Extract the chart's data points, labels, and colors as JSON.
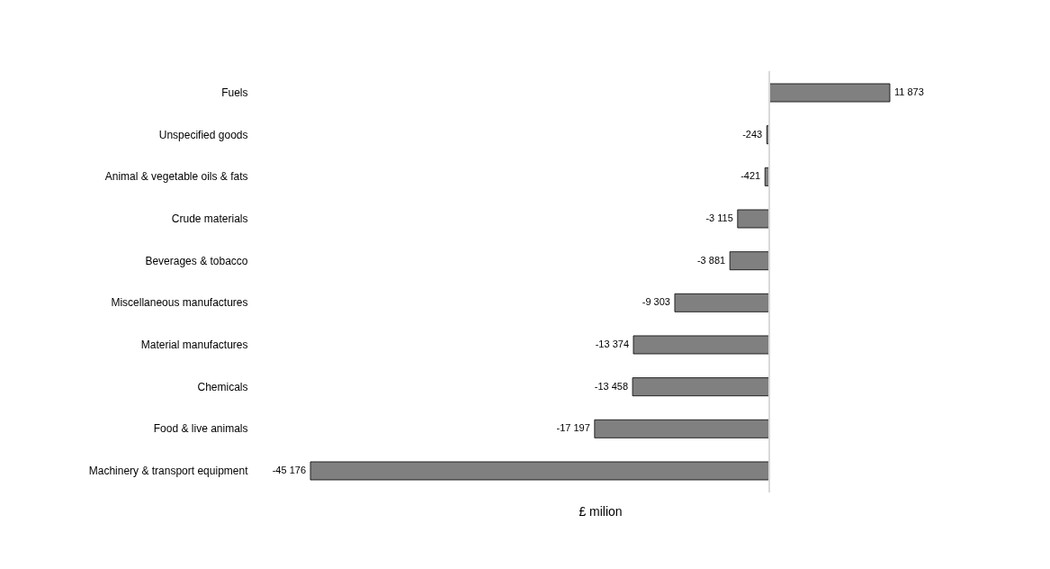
{
  "chart_data": {
    "type": "bar",
    "orientation": "horizontal",
    "xlabel": "£ milion",
    "categories": [
      "Fuels",
      "Unspecified goods",
      "Animal & vegetable oils & fats",
      "Crude materials",
      "Beverages & tobacco",
      "Miscellaneous manufactures",
      "Material manufactures",
      "Chemicals",
      "Food & live animals",
      "Machinery & transport equipment"
    ],
    "values": [
      11873,
      -243,
      -421,
      -3115,
      -3881,
      -9303,
      -13374,
      -13458,
      -17197,
      -45176
    ],
    "value_labels": [
      "11 873",
      "-243",
      "-421",
      "-3 115",
      "-3 881",
      "-9 303",
      "-13 374",
      "-13 458",
      "-17 197",
      "-45 176"
    ],
    "color": "#808080"
  }
}
